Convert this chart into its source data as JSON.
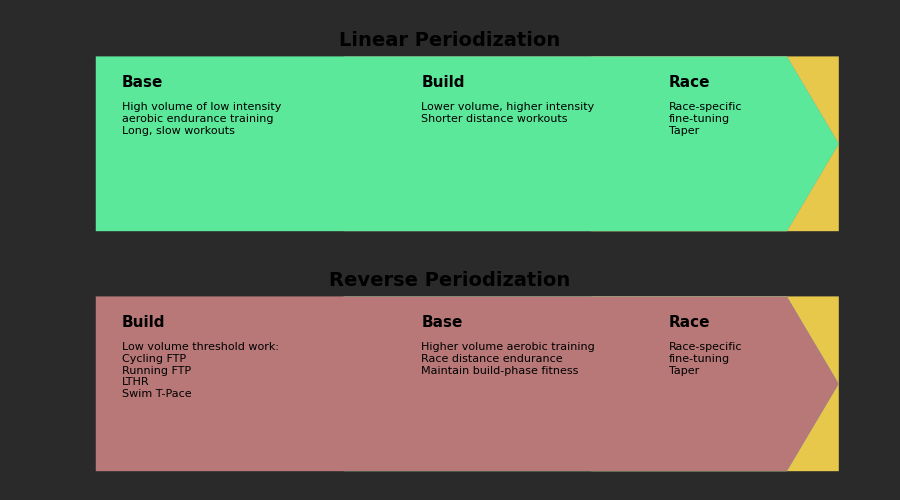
{
  "fig_bg": "#2a2a2a",
  "top_bg": "#c5d5e5",
  "bottom_bg": "#cccccc",
  "green_color": "#5ce89a",
  "pink_color": "#b87878",
  "yellow_color": "#e8c84a",
  "white_inner_bg": "#e8e8e8",
  "linear_title": "Linear Periodization",
  "reverse_title": "Reverse Periodization",
  "linear_phases": [
    {
      "label": "Base",
      "body": "High volume of low intensity\naerobic endurance training\nLong, slow workouts",
      "color": "#5ce89a"
    },
    {
      "label": "Build",
      "body": "Lower volume, higher intensity\nShorter distance workouts",
      "color": "#b87878"
    },
    {
      "label": "Race",
      "body": "Race-specific\nfine-tuning\nTaper",
      "color": "#e8c84a"
    }
  ],
  "reverse_phases": [
    {
      "label": "Build",
      "body": "Low volume threshold work:\nCycling FTP\nRunning FTP\nLTHR\nSwim T-Pace",
      "color": "#b87878"
    },
    {
      "label": "Base",
      "body": "Higher volume aerobic training\nRace distance endurance\nMaintain build-phase fitness",
      "color": "#5ce89a"
    },
    {
      "label": "Race",
      "body": "Race-specific\nfine-tuning\nTaper",
      "color": "#e8c84a"
    }
  ]
}
